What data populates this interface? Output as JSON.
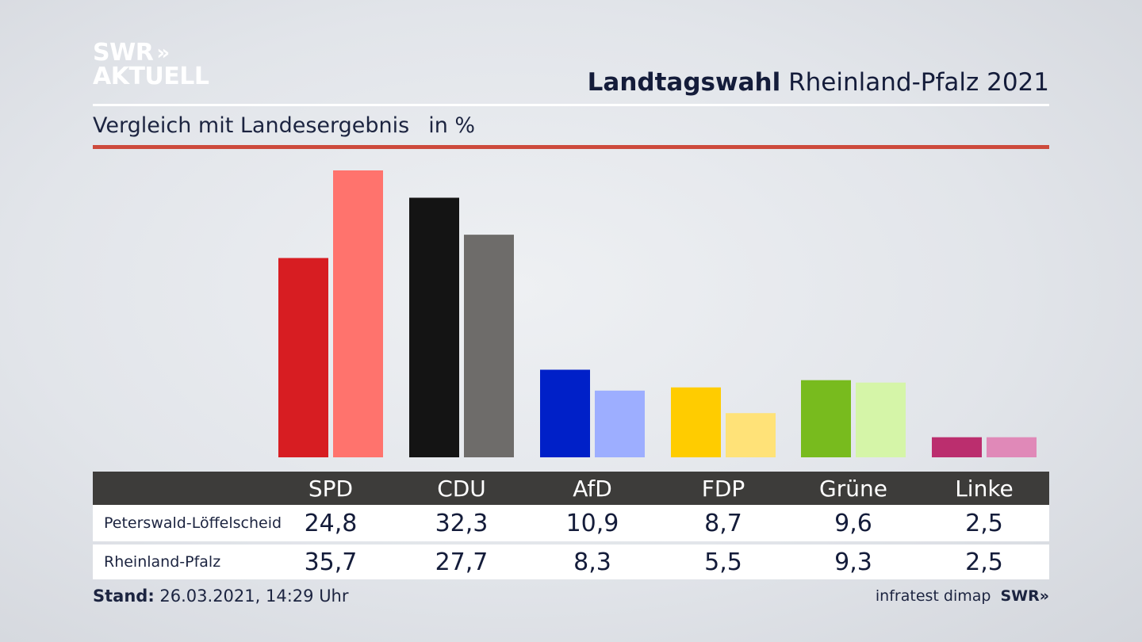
{
  "brand": {
    "logo_line1": "SWR",
    "logo_chevrons": "»",
    "logo_line2": "AKTUELL"
  },
  "header": {
    "title_bold": "Landtagswahl",
    "title_rest": "Rheinland-Pfalz 2021",
    "subtitle": "Vergleich mit Landesergebnis",
    "unit": "in %"
  },
  "table": {
    "parties": [
      "SPD",
      "CDU",
      "AfD",
      "FDP",
      "Grüne",
      "Linke"
    ],
    "rows": [
      {
        "label": "Peterswald-Löffelscheid",
        "values": [
          "24,8",
          "32,3",
          "10,9",
          "8,7",
          "9,6",
          "2,5"
        ]
      },
      {
        "label": "Rheinland-Pfalz",
        "values": [
          "35,7",
          "27,7",
          "8,3",
          "5,5",
          "9,3",
          "2,5"
        ]
      }
    ]
  },
  "footer": {
    "stand_label": "Stand:",
    "stand_value": "26.03.2021, 14:29 Uhr",
    "source": "infratest dimap",
    "source_brand": "SWR»"
  },
  "chart_data": {
    "type": "bar",
    "title": "Landtagswahl Rheinland-Pfalz 2021",
    "subtitle": "Vergleich mit Landesergebnis in %",
    "categories": [
      "SPD",
      "CDU",
      "AfD",
      "FDP",
      "Grüne",
      "Linke"
    ],
    "series": [
      {
        "name": "Peterswald-Löffelscheid",
        "values": [
          24.8,
          32.3,
          10.9,
          8.7,
          9.6,
          2.5
        ],
        "colors": [
          "#d71d22",
          "#141414",
          "#0020c8",
          "#ffcc00",
          "#78bb1e",
          "#bb2e6e"
        ]
      },
      {
        "name": "Rheinland-Pfalz",
        "values": [
          35.7,
          27.7,
          8.3,
          5.5,
          9.3,
          2.5
        ],
        "colors": [
          "#ff736d",
          "#6e6c6a",
          "#9daeff",
          "#ffe278",
          "#d5f5a8",
          "#e089b8"
        ]
      }
    ],
    "ylim": [
      0,
      35.7
    ],
    "grid": false
  }
}
